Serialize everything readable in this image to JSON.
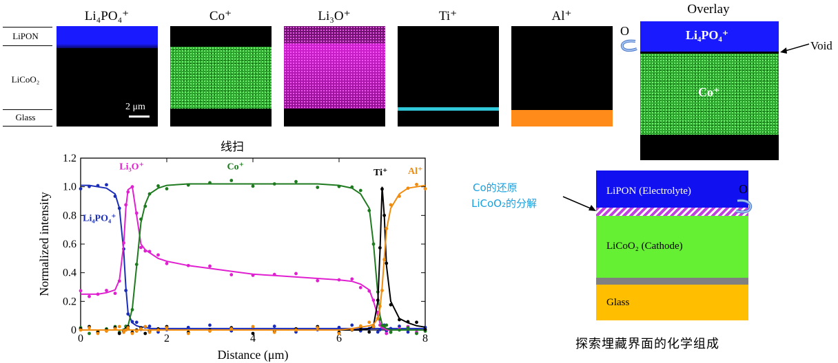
{
  "eds_panels": {
    "layer_labels": [
      "LiPON",
      "LiCoO₂",
      "Glass"
    ],
    "scale_bar": "2 μm",
    "titles": {
      "li4po4": "Li₄PO₄⁺",
      "co": "Co⁺",
      "li3o": "Li₃O⁺",
      "ti": "Ti⁺",
      "al": "Al⁺",
      "overlay": "Overlay"
    },
    "overlay": {
      "top_label": "Li₄PO₄⁺",
      "mid_label": "Co⁺",
      "o_label": "O",
      "void_label": "Void"
    },
    "colors": {
      "li4po4": "#1a1aff",
      "co": "#2ea82e",
      "li3o": "#d020d0",
      "ti": "#30c8d8",
      "al": "#ff8c1a"
    }
  },
  "line_scan_title": "线扫",
  "chart_data": {
    "type": "line",
    "title": "线扫",
    "xlabel": "Distance (μm)",
    "ylabel": "Normalized intensity",
    "xlim": [
      0,
      8
    ],
    "ylim": [
      0,
      1.2
    ],
    "xticks": [
      0,
      2,
      4,
      6,
      8
    ],
    "yticks": [
      0,
      0.2,
      0.4,
      0.6,
      0.8,
      1.0,
      1.2
    ],
    "x": [
      0,
      0.2,
      0.4,
      0.6,
      0.8,
      0.9,
      1.0,
      1.05,
      1.1,
      1.2,
      1.3,
      1.4,
      1.5,
      1.6,
      1.8,
      2.0,
      2.5,
      3.0,
      3.5,
      4.0,
      4.5,
      5.0,
      5.5,
      6.0,
      6.3,
      6.5,
      6.7,
      6.8,
      6.9,
      6.95,
      7.0,
      7.05,
      7.1,
      7.2,
      7.4,
      7.6,
      7.8,
      8.0
    ],
    "series": [
      {
        "name": "Li₄PO₄⁺",
        "color": "#1a2db8",
        "values": [
          1.01,
          1.01,
          1.0,
          0.99,
          0.95,
          0.85,
          0.55,
          0.3,
          0.12,
          0.05,
          0.03,
          0.02,
          0.02,
          0.01,
          0.01,
          0.01,
          0.01,
          0.01,
          0.01,
          0.01,
          0.01,
          0.01,
          0.01,
          0.01,
          0.01,
          0.01,
          0.01,
          0.01,
          0.01,
          0.01,
          0.01,
          0.01,
          0.01,
          0.01,
          0.01,
          0.01,
          0.01,
          0.01
        ]
      },
      {
        "name": "Li₃O⁺",
        "color": "#e020d0",
        "values": [
          0.25,
          0.25,
          0.25,
          0.26,
          0.28,
          0.35,
          0.6,
          0.85,
          0.98,
          1.0,
          0.8,
          0.6,
          0.56,
          0.54,
          0.5,
          0.48,
          0.45,
          0.43,
          0.41,
          0.39,
          0.38,
          0.37,
          0.36,
          0.35,
          0.34,
          0.32,
          0.28,
          0.2,
          0.1,
          0.05,
          0.02,
          0.01,
          0.0,
          0.0,
          0.0,
          0.0,
          0.0,
          0.0
        ]
      },
      {
        "name": "Co⁺",
        "color": "#1e7a1e",
        "values": [
          0.0,
          0.0,
          0.0,
          0.0,
          0.0,
          0.0,
          0.0,
          0.01,
          0.03,
          0.15,
          0.45,
          0.75,
          0.88,
          0.95,
          0.99,
          1.01,
          1.02,
          1.02,
          1.02,
          1.02,
          1.02,
          1.02,
          1.02,
          1.01,
          0.99,
          0.95,
          0.85,
          0.6,
          0.25,
          0.1,
          0.04,
          0.02,
          0.01,
          0.0,
          0.0,
          0.0,
          0.0,
          0.0
        ]
      },
      {
        "name": "Ti⁺",
        "color": "#000000",
        "values": [
          0.0,
          0.0,
          0.0,
          0.0,
          0.0,
          0.0,
          0.0,
          0.0,
          0.0,
          0.0,
          0.0,
          0.0,
          0.0,
          0.0,
          0.0,
          0.0,
          0.0,
          0.0,
          0.0,
          0.0,
          0.0,
          0.0,
          0.0,
          0.0,
          0.0,
          0.0,
          0.01,
          0.03,
          0.2,
          0.55,
          1.0,
          0.8,
          0.45,
          0.2,
          0.08,
          0.05,
          0.03,
          0.02
        ]
      },
      {
        "name": "Al⁺",
        "color": "#f08c10",
        "values": [
          0.0,
          0.0,
          0.0,
          0.0,
          0.0,
          0.0,
          0.0,
          0.0,
          0.0,
          0.0,
          0.0,
          0.0,
          0.0,
          0.0,
          0.0,
          0.0,
          0.0,
          0.0,
          0.0,
          0.0,
          0.0,
          0.0,
          0.0,
          0.0,
          0.01,
          0.02,
          0.03,
          0.04,
          0.08,
          0.15,
          0.3,
          0.5,
          0.7,
          0.85,
          0.95,
          0.99,
          1.0,
          1.01
        ]
      }
    ],
    "series_labels": {
      "li4po4": "Li₄PO₄⁺",
      "li3o": "Li₃O⁺",
      "co": "Co⁺",
      "ti": "Ti⁺",
      "al": "Al⁺"
    }
  },
  "schematic": {
    "layers": [
      "LiPON (Electrolyte)",
      "LiCoO₂ (Cathode)",
      "Glass"
    ],
    "o_label": "O",
    "annotation_line1": "Co的还原",
    "annotation_line2": "LiCoO₂的分解",
    "caption": "探索埋藏界面的化学组成",
    "colors": {
      "lipon": "#1010f0",
      "interface": "#c040e0",
      "licoo2": "#66f033",
      "barrier": "#808080",
      "glass": "#ffbf00",
      "annotation": "#1aa0e0"
    }
  }
}
